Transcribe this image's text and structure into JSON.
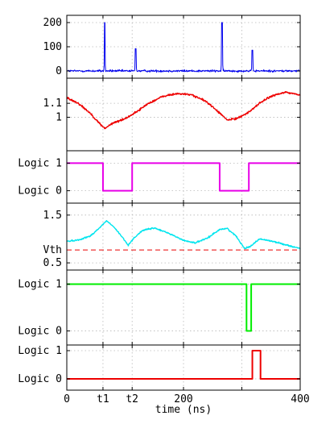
{
  "chart_data": [
    {
      "type": "line",
      "panel": 1,
      "xlim": [
        0,
        400
      ],
      "ylim": [
        -30,
        230
      ],
      "yticks": [
        0,
        100,
        200
      ],
      "ytick_labels": [
        "0",
        "100",
        "200"
      ],
      "grid": true,
      "series": [
        {
          "color": "#0000ee",
          "noise_amplitude": 8,
          "baseline": 0,
          "spikes": [
            {
              "x": 65,
              "y": 200
            },
            {
              "x": 118,
              "y": 92
            },
            {
              "x": 266,
              "y": 200
            },
            {
              "x": 318,
              "y": 86
            }
          ]
        }
      ]
    },
    {
      "type": "line",
      "panel": 2,
      "xlim": [
        0,
        400
      ],
      "ylim": [
        0.76,
        1.28
      ],
      "yticks": [
        1.0,
        1.1
      ],
      "ytick_labels": [
        "1",
        "1.1"
      ],
      "grid": true,
      "series": [
        {
          "color": "#ee0000",
          "noise_amplitude": 0.012,
          "x": [
            0,
            20,
            40,
            55,
            65,
            80,
            100,
            120,
            140,
            165,
            190,
            215,
            240,
            262,
            275,
            290,
            310,
            330,
            350,
            375,
            400
          ],
          "y": [
            1.14,
            1.1,
            1.03,
            0.96,
            0.92,
            0.96,
            0.99,
            1.04,
            1.1,
            1.15,
            1.17,
            1.16,
            1.11,
            1.03,
            0.98,
            0.99,
            1.03,
            1.1,
            1.15,
            1.18,
            1.16
          ]
        }
      ]
    },
    {
      "type": "line",
      "panel": 3,
      "xlim": [
        0,
        400
      ],
      "ylim": [
        -0.45,
        1.45
      ],
      "yticks": [
        0,
        1
      ],
      "ytick_labels": [
        "Logic 0",
        "Logic 1"
      ],
      "grid": true,
      "series": [
        {
          "color": "#e800e8",
          "step": true,
          "x": [
            0,
            62,
            62,
            112,
            112,
            262,
            262,
            312,
            312,
            400
          ],
          "y": [
            1,
            1,
            0,
            0,
            1,
            1,
            0,
            0,
            1,
            1
          ]
        }
      ]
    },
    {
      "type": "line",
      "panel": 4,
      "xlim": [
        0,
        400
      ],
      "ylim": [
        0.35,
        1.75
      ],
      "yticks": [
        0.5,
        1.5
      ],
      "ytick_labels": [
        "0.5",
        "1.5"
      ],
      "threshold": {
        "label": "Vth",
        "value": 0.77,
        "color": "#ee3333"
      },
      "grid": true,
      "series": [
        {
          "color": "#00e5ee",
          "noise_amplitude": 0.025,
          "x": [
            0,
            20,
            40,
            55,
            68,
            80,
            95,
            105,
            115,
            130,
            150,
            175,
            200,
            220,
            240,
            262,
            275,
            290,
            305,
            315,
            330,
            350,
            375,
            400
          ],
          "y": [
            0.95,
            0.98,
            1.06,
            1.22,
            1.38,
            1.26,
            1.04,
            0.87,
            1.02,
            1.18,
            1.23,
            1.12,
            0.97,
            0.92,
            1.01,
            1.2,
            1.22,
            1.06,
            0.8,
            0.85,
            1.0,
            0.96,
            0.88,
            0.8
          ]
        }
      ]
    },
    {
      "type": "line",
      "panel": 5,
      "xlim": [
        0,
        400
      ],
      "ylim": [
        -0.3,
        1.3
      ],
      "yticks": [
        0,
        1
      ],
      "ytick_labels": [
        "Logic 0",
        "Logic 1"
      ],
      "grid": true,
      "series": [
        {
          "color": "#00ee00",
          "step": true,
          "x": [
            0,
            308,
            308,
            316,
            316,
            400
          ],
          "y": [
            1,
            1,
            0,
            0,
            1,
            1
          ]
        }
      ]
    },
    {
      "type": "line",
      "panel": 6,
      "xlim": [
        0,
        400
      ],
      "ylim": [
        -0.4,
        1.2
      ],
      "yticks": [
        0,
        1
      ],
      "ytick_labels": [
        "Logic 0",
        "Logic 1"
      ],
      "grid": true,
      "xticks": [
        0,
        62,
        112,
        200,
        400
      ],
      "xtick_labels": [
        "0",
        "t1",
        "t2",
        "200",
        "400"
      ],
      "xlabel": "time (ns)",
      "series": [
        {
          "color": "#ee0000",
          "step": true,
          "x": [
            0,
            318,
            318,
            332,
            332,
            400
          ],
          "y": [
            0,
            0,
            1,
            1,
            0,
            0
          ]
        }
      ]
    }
  ]
}
